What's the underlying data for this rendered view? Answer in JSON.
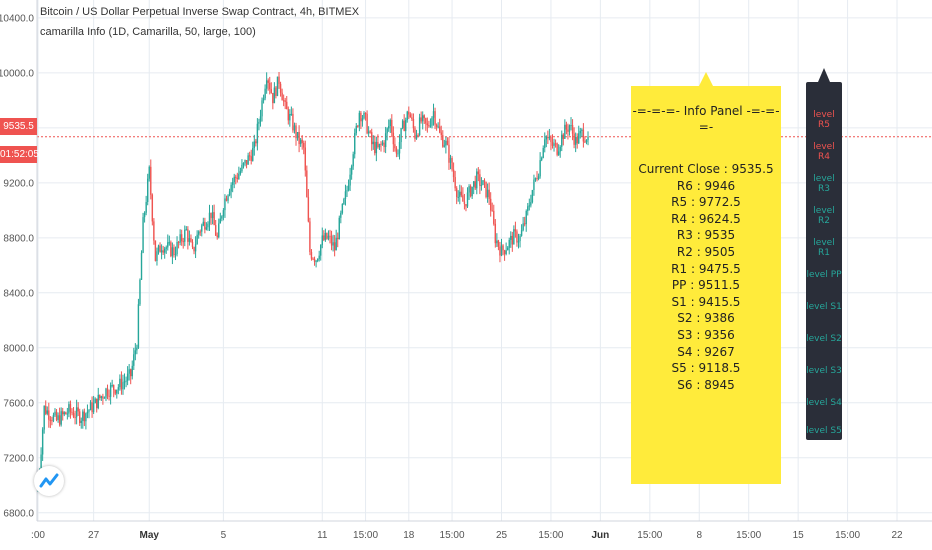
{
  "header": {
    "title": "Bitcoin / US Dollar Perpetual Inverse Swap Contract, 4h, BITMEX",
    "indicator": "camarilla Info (1D, Camarilla, 50, large, 100)"
  },
  "price_axis": {
    "current_price": "9535.5",
    "countdown": "01:52:05"
  },
  "info_panel": {
    "heading": "-=-=-=- Info Panel -=-=-=-",
    "lines": [
      "Current Close : 9535.5",
      "R6 : 9946",
      "R5 : 9772.5",
      "R4 : 9624.5",
      "R3 : 9535",
      "R2 : 9505",
      "R1 : 9475.5",
      "PP : 9511.5",
      "S1 : 9415.5",
      "S2 : 9386",
      "S3 : 9356",
      "S4 : 9267",
      "S5 : 9118.5",
      "S6 : 8945"
    ]
  },
  "level_panel": {
    "items": [
      {
        "label": "level R5",
        "color": "#ef5350"
      },
      {
        "label": "level R4",
        "color": "#ef5350"
      },
      {
        "label": "level R3",
        "color": "#26a69a"
      },
      {
        "label": "level R2",
        "color": "#26a69a"
      },
      {
        "label": "level R1",
        "color": "#26a69a"
      },
      {
        "label": "level PP",
        "color": "#26a69a"
      },
      {
        "label": "level S1",
        "color": "#26a69a"
      },
      {
        "label": "level S2",
        "color": "#26a69a"
      },
      {
        "label": "level S3",
        "color": "#26a69a"
      },
      {
        "label": "level S4",
        "color": "#26a69a"
      },
      {
        "label": "level S5",
        "color": "#26a69a"
      }
    ]
  },
  "colors": {
    "up": "#26a69a",
    "down": "#ef5350",
    "grid": "#e6ebf1",
    "price_line": "#ef5350",
    "info_bg": "#ffeb3b",
    "level_bg": "#2a2e39"
  },
  "icons": {
    "logo": "tradingview-logo-icon"
  },
  "chart_data": {
    "type": "candlestick",
    "title": "Bitcoin / US Dollar Perpetual Inverse Swap Contract, 4h, BITMEX",
    "y_ticks": [
      10400,
      10000,
      9600,
      9200,
      8800,
      8400,
      8000,
      7600,
      7200,
      6800
    ],
    "y_tick_labels": [
      "10400.0",
      "10000.0",
      "9600.0",
      "9200.0",
      "8800.0",
      "8400.0",
      "8000.0",
      "7600.0",
      "7200.0",
      "6800.0"
    ],
    "ylim": [
      6740,
      10530
    ],
    "x_ticks": [
      {
        "label": ":00",
        "bar": 0,
        "bold": false
      },
      {
        "label": "27",
        "bar": 9,
        "bold": false
      },
      {
        "label": "May",
        "bar": 18,
        "bold": true
      },
      {
        "label": "5",
        "bar": 30,
        "bold": false
      },
      {
        "label": "11",
        "bar": 46,
        "bold": false
      },
      {
        "label": "15:00",
        "bar": 53,
        "bold": false
      },
      {
        "label": "18",
        "bar": 60,
        "bold": false
      },
      {
        "label": "15:00",
        "bar": 67,
        "bold": false
      },
      {
        "label": "25",
        "bar": 75,
        "bold": false
      },
      {
        "label": "15:00",
        "bar": 83,
        "bold": false
      },
      {
        "label": "Jun",
        "bar": 91,
        "bold": true
      },
      {
        "label": "15:00",
        "bar": 99,
        "bold": false
      },
      {
        "label": "8",
        "bar": 107,
        "bold": false
      },
      {
        "label": "15:00",
        "bar": 115,
        "bold": false
      },
      {
        "label": "15",
        "bar": 123,
        "bold": false
      },
      {
        "label": "15:00",
        "bar": 131,
        "bold": false
      },
      {
        "label": "22",
        "bar": 139,
        "bold": false
      }
    ],
    "current_close": 9535.5,
    "close_path": [
      [
        0,
        6980
      ],
      [
        1,
        7560
      ],
      [
        3,
        7470
      ],
      [
        5,
        7540
      ],
      [
        7,
        7500
      ],
      [
        9,
        7580
      ],
      [
        11,
        7690
      ],
      [
        13,
        7720
      ],
      [
        15,
        7800
      ],
      [
        16,
        8050
      ],
      [
        17,
        8900
      ],
      [
        18,
        9280
      ],
      [
        19,
        8650
      ],
      [
        20,
        8750
      ],
      [
        22,
        8700
      ],
      [
        24,
        8850
      ],
      [
        25,
        8690
      ],
      [
        26,
        8850
      ],
      [
        28,
        8980
      ],
      [
        29,
        8790
      ],
      [
        30,
        9050
      ],
      [
        31,
        9180
      ],
      [
        33,
        9300
      ],
      [
        35,
        9450
      ],
      [
        36,
        9720
      ],
      [
        37,
        10000
      ],
      [
        38,
        9820
      ],
      [
        39,
        9950
      ],
      [
        40,
        9740
      ],
      [
        41,
        9650
      ],
      [
        42,
        9520
      ],
      [
        43,
        9450
      ],
      [
        44,
        8700
      ],
      [
        45,
        8650
      ],
      [
        46,
        8780
      ],
      [
        47,
        8800
      ],
      [
        48,
        8720
      ],
      [
        49,
        8950
      ],
      [
        50,
        9150
      ],
      [
        51,
        9450
      ],
      [
        52,
        9720
      ],
      [
        53,
        9650
      ],
      [
        54,
        9480
      ],
      [
        55,
        9440
      ],
      [
        56,
        9500
      ],
      [
        57,
        9650
      ],
      [
        58,
        9400
      ],
      [
        59,
        9600
      ],
      [
        60,
        9720
      ],
      [
        61,
        9550
      ],
      [
        62,
        9650
      ],
      [
        63,
        9600
      ],
      [
        64,
        9720
      ],
      [
        65,
        9550
      ],
      [
        66,
        9480
      ],
      [
        67,
        9300
      ],
      [
        68,
        9100
      ],
      [
        69,
        9050
      ],
      [
        70,
        9150
      ],
      [
        71,
        9230
      ],
      [
        72,
        9180
      ],
      [
        73,
        9100
      ],
      [
        74,
        8800
      ],
      [
        75,
        8700
      ],
      [
        76,
        8750
      ],
      [
        77,
        8810
      ],
      [
        78,
        8800
      ],
      [
        79,
        8950
      ],
      [
        80,
        9150
      ],
      [
        81,
        9300
      ],
      [
        82,
        9550
      ],
      [
        83,
        9480
      ],
      [
        84,
        9450
      ],
      [
        85,
        9560
      ],
      [
        86,
        9620
      ],
      [
        87,
        9500
      ],
      [
        88,
        9560
      ],
      [
        89,
        9535.5
      ]
    ]
  }
}
